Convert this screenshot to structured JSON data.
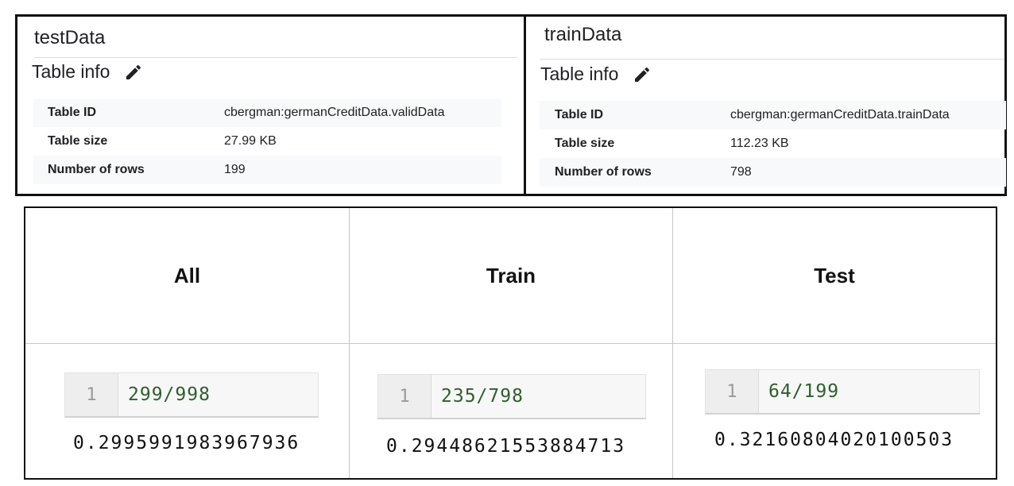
{
  "panels": [
    {
      "title": "testData",
      "info_label": "Table info",
      "rows": [
        {
          "key": "Table ID",
          "value": "cbergman:germanCreditData.validData"
        },
        {
          "key": "Table size",
          "value": "27.99 KB"
        },
        {
          "key": "Number of rows",
          "value": "199"
        }
      ]
    },
    {
      "title": "trainData",
      "info_label": "Table info",
      "rows": [
        {
          "key": "Table ID",
          "value": "cbergman:germanCreditData.trainData"
        },
        {
          "key": "Table size",
          "value": "112.23 KB"
        },
        {
          "key": "Number of rows",
          "value": "798"
        }
      ]
    }
  ],
  "icons": {
    "edit": "pencil-icon"
  },
  "ratio_table": {
    "columns": [
      {
        "header": "All",
        "line_no": "1",
        "code": "299/998",
        "result": "0.2995991983967936"
      },
      {
        "header": "Train",
        "line_no": "1",
        "code": "235/798",
        "result": "0.29448621553884713"
      },
      {
        "header": "Test",
        "line_no": "1",
        "code": "64/199",
        "result": "0.32160804020100503"
      }
    ]
  }
}
